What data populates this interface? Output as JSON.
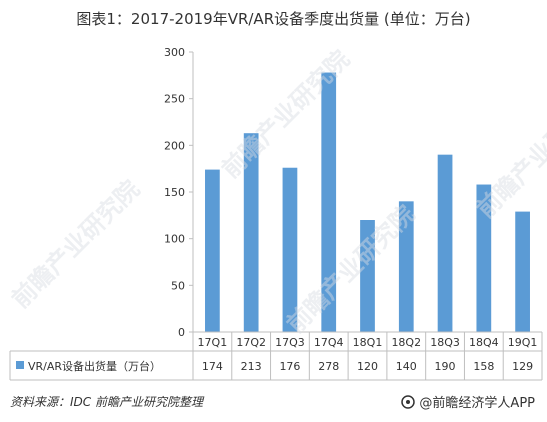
{
  "title": "图表1：2017-2019年VR/AR设备季度出货量 (单位：万台)",
  "source": "资料来源：IDC 前瞻产业研究院整理",
  "brand": {
    "text": "@前瞻经济学人APP",
    "logo_icon": "qianzhan-logo-icon"
  },
  "watermarks": [
    "前瞻产业研究院",
    "前瞻产业研究院",
    "前瞻产业研究院",
    "前瞻产业研究院"
  ],
  "colors": {
    "bar": "#5b9bd5",
    "axis": "#bfbfbf",
    "text": "#333333"
  },
  "chart_data": {
    "type": "bar",
    "categories": [
      "17Q1",
      "17Q2",
      "17Q3",
      "17Q4",
      "18Q1",
      "18Q2",
      "18Q3",
      "18Q4",
      "19Q1"
    ],
    "series": [
      {
        "name": "VR/AR设备出货量（万台）",
        "values": [
          174,
          213,
          176,
          278,
          120,
          140,
          190,
          158,
          129
        ]
      }
    ],
    "ylim": [
      0,
      300
    ],
    "yticks": [
      0,
      50,
      100,
      150,
      200,
      250,
      300
    ],
    "grid": false,
    "data_table": true
  }
}
